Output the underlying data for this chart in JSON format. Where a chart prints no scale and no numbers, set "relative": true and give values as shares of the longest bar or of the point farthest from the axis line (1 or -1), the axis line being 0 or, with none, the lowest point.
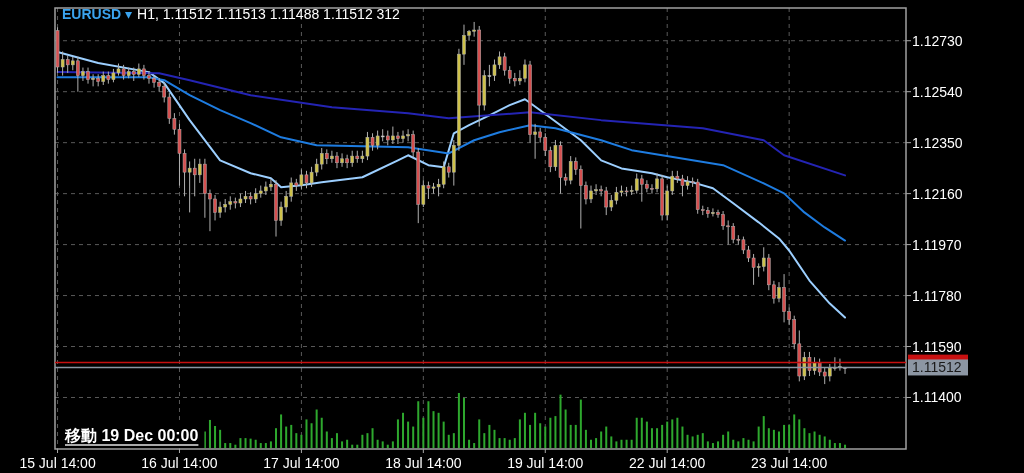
{
  "chart_data": [
    {
      "type": "candlestick",
      "title": "EURUSD ▾",
      "subtitle": "H1, 1.11512 1.11513 1.11488 1.11512 312",
      "categories": [
        "15 Jul 14:00",
        null,
        null,
        null,
        null,
        null,
        null,
        null,
        null,
        null,
        null,
        null,
        null,
        null,
        null,
        null,
        null,
        null,
        null,
        null,
        null,
        null,
        null,
        null,
        "16 Jul 14:00",
        null,
        null,
        null,
        null,
        null,
        null,
        null,
        null,
        null,
        null,
        null,
        null,
        null,
        null,
        null,
        null,
        null,
        null,
        null,
        null,
        null,
        null,
        null,
        "17 Jul 14:00",
        null,
        null,
        null,
        null,
        null,
        null,
        null,
        null,
        null,
        null,
        null,
        null,
        null,
        null,
        null,
        null,
        null,
        null,
        null,
        null,
        null,
        null,
        null,
        "18 Jul 14:00",
        null,
        null,
        null,
        null,
        null,
        null,
        null,
        null,
        null,
        null,
        null,
        null,
        null,
        null,
        null,
        null,
        null,
        null,
        null,
        null,
        null,
        null,
        null,
        "19 Jul 14:00",
        null,
        null,
        null,
        null,
        null,
        null,
        null,
        null,
        null,
        null,
        null,
        null,
        null,
        null,
        null,
        null,
        null,
        null,
        null,
        null,
        null,
        null,
        null,
        "22 Jul 14:00",
        null,
        null,
        null,
        null,
        null,
        null,
        null,
        null,
        null,
        null,
        null,
        null,
        null,
        null,
        null,
        null,
        null,
        null,
        null,
        null,
        null,
        null,
        null,
        "23 Jul 14:00",
        null,
        null,
        null,
        null,
        null,
        null,
        null,
        null,
        null,
        null,
        null
      ],
      "ohlc": [
        [
          1.12768,
          1.1278,
          1.1261,
          1.12632
        ],
        [
          1.12632,
          1.1269,
          1.126,
          1.1266
        ],
        [
          1.1266,
          1.12675,
          1.1261,
          1.1264
        ],
        [
          1.1264,
          1.1267,
          1.1262,
          1.12655
        ],
        [
          1.12655,
          1.1267,
          1.1254,
          1.126
        ],
        [
          1.126,
          1.1263,
          1.1258,
          1.12615
        ],
        [
          1.12615,
          1.1263,
          1.1257,
          1.12585
        ],
        [
          1.12585,
          1.12605,
          1.1256,
          1.1259
        ],
        [
          1.1259,
          1.12605,
          1.1256,
          1.12578
        ],
        [
          1.12578,
          1.12615,
          1.12565,
          1.126
        ],
        [
          1.126,
          1.12615,
          1.1257,
          1.12585
        ],
        [
          1.12585,
          1.12625,
          1.12575,
          1.1261
        ],
        [
          1.1261,
          1.12645,
          1.126,
          1.12625
        ],
        [
          1.12625,
          1.1264,
          1.12585,
          1.126
        ],
        [
          1.126,
          1.1263,
          1.1259,
          1.12615
        ],
        [
          1.12615,
          1.1263,
          1.1258,
          1.12605
        ],
        [
          1.12605,
          1.12645,
          1.12595,
          1.12625
        ],
        [
          1.12625,
          1.1264,
          1.12585,
          1.126
        ],
        [
          1.126,
          1.12615,
          1.1257,
          1.1259
        ],
        [
          1.1259,
          1.126,
          1.12555,
          1.12575
        ],
        [
          1.12575,
          1.1259,
          1.1254,
          1.1256
        ],
        [
          1.1256,
          1.12575,
          1.125,
          1.1252
        ],
        [
          1.1252,
          1.12535,
          1.1242,
          1.1244
        ],
        [
          1.1244,
          1.1246,
          1.1238,
          1.124
        ],
        [
          1.124,
          1.1242,
          1.1219,
          1.1231
        ],
        [
          1.1231,
          1.12325,
          1.1215,
          1.1224
        ],
        [
          1.1224,
          1.1228,
          1.1209,
          1.12255
        ],
        [
          1.12255,
          1.1229,
          1.1215,
          1.1223
        ],
        [
          1.1223,
          1.1229,
          1.122,
          1.1227
        ],
        [
          1.1227,
          1.1229,
          1.1207,
          1.1216
        ],
        [
          1.1216,
          1.12175,
          1.1202,
          1.1214
        ],
        [
          1.1214,
          1.12155,
          1.1206,
          1.1209
        ],
        [
          1.1209,
          1.1213,
          1.1207,
          1.1211
        ],
        [
          1.1211,
          1.1214,
          1.1209,
          1.1212
        ],
        [
          1.1212,
          1.1215,
          1.121,
          1.1213
        ],
        [
          1.1213,
          1.12145,
          1.12105,
          1.12125
        ],
        [
          1.12125,
          1.1216,
          1.1211,
          1.1214
        ],
        [
          1.1214,
          1.1217,
          1.12125,
          1.1215
        ],
        [
          1.1215,
          1.12165,
          1.1212,
          1.1214
        ],
        [
          1.1214,
          1.1218,
          1.12125,
          1.1216
        ],
        [
          1.1216,
          1.1219,
          1.12145,
          1.1217
        ],
        [
          1.1217,
          1.12205,
          1.12155,
          1.12185
        ],
        [
          1.12185,
          1.12215,
          1.1217,
          1.12195
        ],
        [
          1.12195,
          1.1221,
          1.12,
          1.1206
        ],
        [
          1.1206,
          1.1213,
          1.1204,
          1.1211
        ],
        [
          1.1211,
          1.1217,
          1.1209,
          1.1215
        ],
        [
          1.1215,
          1.1222,
          1.1213,
          1.122
        ],
        [
          1.122,
          1.12215,
          1.1217,
          1.1219
        ],
        [
          1.1219,
          1.1225,
          1.12175,
          1.1223
        ],
        [
          1.1223,
          1.12245,
          1.1218,
          1.122
        ],
        [
          1.122,
          1.1226,
          1.12185,
          1.1224
        ],
        [
          1.1224,
          1.1229,
          1.12225,
          1.1227
        ],
        [
          1.1227,
          1.1233,
          1.1225,
          1.1231
        ],
        [
          1.1231,
          1.12325,
          1.1227,
          1.1229
        ],
        [
          1.1229,
          1.1232,
          1.12275,
          1.123
        ],
        [
          1.123,
          1.12315,
          1.12255,
          1.12275
        ],
        [
          1.12275,
          1.1231,
          1.1226,
          1.1229
        ],
        [
          1.1229,
          1.12305,
          1.12255,
          1.12275
        ],
        [
          1.12275,
          1.1232,
          1.1226,
          1.123
        ],
        [
          1.123,
          1.1232,
          1.12275,
          1.1229
        ],
        [
          1.1229,
          1.1232,
          1.12275,
          1.123
        ],
        [
          1.123,
          1.1239,
          1.12285,
          1.1237
        ],
        [
          1.1237,
          1.12385,
          1.1232,
          1.1234
        ],
        [
          1.1234,
          1.12395,
          1.12325,
          1.12375
        ],
        [
          1.12375,
          1.124,
          1.12355,
          1.12375
        ],
        [
          1.12375,
          1.12395,
          1.1234,
          1.1236
        ],
        [
          1.1236,
          1.1241,
          1.12345,
          1.12375
        ],
        [
          1.12375,
          1.1239,
          1.12345,
          1.12365
        ],
        [
          1.12365,
          1.12395,
          1.1235,
          1.12375
        ],
        [
          1.12375,
          1.124,
          1.12355,
          1.1238
        ],
        [
          1.1238,
          1.12395,
          1.12295,
          1.12315
        ],
        [
          1.12315,
          1.1233,
          1.1205,
          1.1212
        ],
        [
          1.1212,
          1.1221,
          1.1211,
          1.1219
        ],
        [
          1.1219,
          1.12205,
          1.1214,
          1.1218
        ],
        [
          1.1218,
          1.122,
          1.1216,
          1.12185
        ],
        [
          1.12185,
          1.12215,
          1.1215,
          1.12195
        ],
        [
          1.12195,
          1.1228,
          1.1218,
          1.1226
        ],
        [
          1.1226,
          1.12275,
          1.1222,
          1.1224
        ],
        [
          1.1224,
          1.1236,
          1.1219,
          1.1234
        ],
        [
          1.1234,
          1.127,
          1.1232,
          1.1268
        ],
        [
          1.1268,
          1.1279,
          1.1264,
          1.1275
        ],
        [
          1.1275,
          1.1277,
          1.1273,
          1.12765
        ],
        [
          1.12765,
          1.128,
          1.12745,
          1.1277
        ],
        [
          1.1277,
          1.12785,
          1.1241,
          1.1249
        ],
        [
          1.1249,
          1.1262,
          1.1247,
          1.126
        ],
        [
          1.126,
          1.1264,
          1.1256,
          1.126
        ],
        [
          1.126,
          1.1266,
          1.1258,
          1.1264
        ],
        [
          1.1264,
          1.1269,
          1.12625,
          1.1267
        ],
        [
          1.1267,
          1.12685,
          1.126,
          1.1262
        ],
        [
          1.1262,
          1.12635,
          1.1257,
          1.1259
        ],
        [
          1.1259,
          1.1261,
          1.1256,
          1.1258
        ],
        [
          1.1258,
          1.1262,
          1.12565,
          1.1259
        ],
        [
          1.1259,
          1.1266,
          1.12575,
          1.1264
        ],
        [
          1.1264,
          1.12655,
          1.1235,
          1.1238
        ],
        [
          1.1238,
          1.1242,
          1.1229,
          1.1239
        ],
        [
          1.1239,
          1.12405,
          1.1235,
          1.1237
        ],
        [
          1.1237,
          1.12385,
          1.123,
          1.1232
        ],
        [
          1.1232,
          1.12335,
          1.1224,
          1.1226
        ],
        [
          1.1226,
          1.1236,
          1.12245,
          1.1234
        ],
        [
          1.1234,
          1.12355,
          1.1216,
          1.1222
        ],
        [
          1.1222,
          1.12235,
          1.1219,
          1.1221
        ],
        [
          1.1221,
          1.123,
          1.12195,
          1.1228
        ],
        [
          1.1228,
          1.12295,
          1.1223,
          1.1225
        ],
        [
          1.1225,
          1.12265,
          1.1203,
          1.1219
        ],
        [
          1.1219,
          1.12205,
          1.1212,
          1.1214
        ],
        [
          1.1214,
          1.1219,
          1.12125,
          1.1217
        ],
        [
          1.1217,
          1.12195,
          1.12155,
          1.12175
        ],
        [
          1.12175,
          1.1219,
          1.1215,
          1.1217
        ],
        [
          1.1217,
          1.12185,
          1.1208,
          1.1211
        ],
        [
          1.1211,
          1.12155,
          1.12095,
          1.12135
        ],
        [
          1.12135,
          1.12185,
          1.1212,
          1.12165
        ],
        [
          1.12165,
          1.1219,
          1.1215,
          1.1217
        ],
        [
          1.1217,
          1.12185,
          1.1215,
          1.12168
        ],
        [
          1.12168,
          1.1219,
          1.12155,
          1.12172
        ],
        [
          1.12172,
          1.12235,
          1.1216,
          1.12215
        ],
        [
          1.12215,
          1.1223,
          1.1213,
          1.12195
        ],
        [
          1.12195,
          1.1221,
          1.12165,
          1.1218
        ],
        [
          1.1218,
          1.12195,
          1.1216,
          1.12178
        ],
        [
          1.12178,
          1.12235,
          1.12165,
          1.12215
        ],
        [
          1.12215,
          1.1223,
          1.1206,
          1.1208
        ],
        [
          1.1208,
          1.1219,
          1.1206,
          1.1217
        ],
        [
          1.1217,
          1.12245,
          1.12155,
          1.12225
        ],
        [
          1.12225,
          1.12245,
          1.122,
          1.12215
        ],
        [
          1.12215,
          1.1223,
          1.1215,
          1.1219
        ],
        [
          1.1219,
          1.12225,
          1.12175,
          1.12205
        ],
        [
          1.12205,
          1.1222,
          1.12185,
          1.12203
        ],
        [
          1.12203,
          1.12215,
          1.12085,
          1.121
        ],
        [
          1.121,
          1.12115,
          1.1208,
          1.12098
        ],
        [
          1.12098,
          1.1211,
          1.1207,
          1.12085
        ],
        [
          1.12085,
          1.12105,
          1.12075,
          1.1209
        ],
        [
          1.1209,
          1.121,
          1.1207,
          1.12082
        ],
        [
          1.12082,
          1.12095,
          1.12025,
          1.1204
        ],
        [
          1.1204,
          1.1206,
          1.1197,
          1.12038
        ],
        [
          1.12038,
          1.1205,
          1.11975,
          1.1199
        ],
        [
          1.1199,
          1.12005,
          1.1197,
          1.11988
        ],
        [
          1.11988,
          1.12,
          1.11935,
          1.1195
        ],
        [
          1.1195,
          1.11965,
          1.11905,
          1.1192
        ],
        [
          1.1192,
          1.11935,
          1.1182,
          1.11885
        ],
        [
          1.11885,
          1.119,
          1.1185,
          1.11888
        ],
        [
          1.11888,
          1.1196,
          1.1187,
          1.1192
        ],
        [
          1.1192,
          1.11935,
          1.118,
          1.1182
        ],
        [
          1.1182,
          1.11835,
          1.1175,
          1.1177
        ],
        [
          1.1177,
          1.1183,
          1.11755,
          1.1181
        ],
        [
          1.1181,
          1.1186,
          1.1168,
          1.1172
        ],
        [
          1.1172,
          1.11735,
          1.1167,
          1.1169
        ],
        [
          1.1169,
          1.11705,
          1.1158,
          1.116
        ],
        [
          1.116,
          1.1165,
          1.1146,
          1.1148
        ],
        [
          1.1148,
          1.1157,
          1.11465,
          1.1155
        ],
        [
          1.1155,
          1.1157,
          1.1148,
          1.115
        ],
        [
          1.115,
          1.1155,
          1.11485,
          1.1153
        ],
        [
          1.1153,
          1.11545,
          1.1148,
          1.11495
        ],
        [
          1.11495,
          1.1151,
          1.1145,
          1.1148
        ],
        [
          1.1148,
          1.11525,
          1.1146,
          1.1151
        ],
        [
          1.1151,
          1.1155,
          1.115,
          1.11512
        ],
        [
          1.11512,
          1.11545,
          1.115,
          1.11515
        ],
        [
          1.11512,
          1.11513,
          1.11488,
          1.11512
        ]
      ],
      "colors": [
        "#d65050",
        "#cfc24a",
        "#d65050",
        "#cfc24a",
        "#d65050",
        "#cfc24a",
        "#d65050",
        "#cfc24a",
        "#d65050",
        "#cfc24a",
        "#d65050",
        "#cfc24a",
        "#cfc24a",
        "#d65050",
        "#cfc24a",
        "#d65050",
        "#cfc24a",
        "#d65050",
        "#d65050",
        "#d65050",
        "#d65050",
        "#d65050",
        "#d65050",
        "#d65050",
        "#d65050",
        "#d65050",
        "#cfc24a",
        "#d65050",
        "#cfc24a",
        "#d65050",
        "#d65050",
        "#d65050",
        "#cfc24a",
        "#cfc24a",
        "#cfc24a",
        "#d65050",
        "#cfc24a",
        "#cfc24a",
        "#d65050",
        "#cfc24a",
        "#cfc24a",
        "#cfc24a",
        "#cfc24a",
        "#d65050",
        "#cfc24a",
        "#cfc24a",
        "#cfc24a",
        "#d65050",
        "#cfc24a",
        "#d65050",
        "#cfc24a",
        "#cfc24a",
        "#cfc24a",
        "#d65050",
        "#cfc24a",
        "#d65050",
        "#cfc24a",
        "#d65050",
        "#cfc24a",
        "#d65050",
        "#cfc24a",
        "#cfc24a",
        "#d65050",
        "#cfc24a",
        "#e8e8e8",
        "#d65050",
        "#cfc24a",
        "#d65050",
        "#cfc24a",
        "#cfc24a",
        "#d65050",
        "#d65050",
        "#cfc24a",
        "#d65050",
        "#cfc24a",
        "#cfc24a",
        "#cfc24a",
        "#d65050",
        "#cfc24a",
        "#cfc24a",
        "#cfc24a",
        "#cfc24a",
        "#cfc24a",
        "#d65050",
        "#cfc24a",
        "#e8e8e8",
        "#cfc24a",
        "#cfc24a",
        "#d65050",
        "#d65050",
        "#d65050",
        "#cfc24a",
        "#cfc24a",
        "#d65050",
        "#cfc24a",
        "#d65050",
        "#d65050",
        "#d65050",
        "#cfc24a",
        "#d65050",
        "#d65050",
        "#cfc24a",
        "#d65050",
        "#d65050",
        "#d65050",
        "#cfc24a",
        "#cfc24a",
        "#d65050",
        "#d65050",
        "#cfc24a",
        "#cfc24a",
        "#cfc24a",
        "#d65050",
        "#cfc24a",
        "#cfc24a",
        "#d65050",
        "#d65050",
        "#d65050",
        "#cfc24a",
        "#d65050",
        "#cfc24a",
        "#cfc24a",
        "#d65050",
        "#d65050",
        "#cfc24a",
        "#d65050",
        "#d65050",
        "#d65050",
        "#d65050",
        "#cfc24a",
        "#d65050",
        "#d65050",
        "#d65050",
        "#d65050",
        "#d65050",
        "#d65050",
        "#d65050",
        "#d65050",
        "#cfc24a",
        "#cfc24a",
        "#d65050",
        "#d65050",
        "#cfc24a",
        "#d65050",
        "#d65050",
        "#d65050",
        "#d65050",
        "#cfc24a",
        "#d65050",
        "#cfc24a",
        "#d65050",
        "#d65050",
        "#cfc24a",
        "#cfc24a",
        "#cfc24a",
        "#e8e8e8"
      ],
      "series": [
        {
          "type": "line",
          "color": "#9ccfff",
          "values": [
            1.12688,
            null,
            null,
            null,
            null,
            null,
            null,
            null,
            1.12647,
            null,
            null,
            null,
            null,
            null,
            null,
            null,
            null,
            null,
            1.12613,
            null,
            null,
            1.12572,
            null,
            null,
            null,
            null,
            1.12434,
            null,
            null,
            null,
            null,
            null,
            1.12284,
            null,
            null,
            null,
            null,
            null,
            1.12236,
            null,
            null,
            null,
            1.12217,
            null,
            1.12184,
            null,
            null,
            null,
            1.12191,
            null,
            null,
            null,
            1.12202,
            null,
            null,
            null,
            null,
            null,
            null,
            null,
            1.12221,
            null,
            null,
            null,
            null,
            null,
            null,
            1.12284,
            null,
            1.12303,
            null,
            null,
            null,
            1.12266,
            null,
            null,
            1.12258,
            null,
            1.12385,
            null,
            null,
            1.12415,
            null,
            null,
            null,
            1.12452,
            null,
            null,
            null,
            1.1249,
            null,
            null,
            1.12512,
            null,
            null,
            1.12471,
            null,
            null,
            null,
            1.12415,
            null,
            null,
            null,
            1.12359,
            null,
            null,
            null,
            1.12284,
            null,
            null,
            null,
            1.12254,
            null,
            null,
            null,
            null,
            null,
            1.12236,
            null,
            null,
            1.12221,
            null,
            null,
            null,
            null,
            1.12202,
            null,
            null,
            null,
            1.1218,
            null,
            null,
            null,
            1.12124,
            null,
            null,
            null,
            null,
            1.12053,
            null,
            null,
            null,
            1.11993,
            null,
            1.11948,
            null,
            null,
            null,
            1.11836,
            null,
            null,
            null,
            1.1175,
            null,
            null,
            1.11698
          ]
        },
        {
          "type": "line",
          "color": "#1e7ce0",
          "values": [
            1.12594,
            null,
            null,
            null,
            null,
            null,
            null,
            null,
            null,
            null,
            null,
            null,
            null,
            null,
            null,
            null,
            null,
            null,
            1.12594,
            null,
            null,
            1.12583,
            null,
            null,
            null,
            null,
            1.12527,
            null,
            null,
            null,
            null,
            null,
            1.12471,
            null,
            null,
            null,
            null,
            null,
            1.12423,
            null,
            null,
            null,
            null,
            null,
            1.1237,
            null,
            null,
            null,
            null,
            null,
            null,
            1.1234,
            null,
            null,
            null,
            null,
            null,
            null,
            null,
            null,
            null,
            null,
            null,
            null,
            null,
            null,
            null,
            null,
            null,
            1.12333,
            null,
            null,
            null,
            null,
            null,
            null,
            null,
            1.1231,
            null,
            null,
            null,
            null,
            1.12359,
            null,
            null,
            null,
            null,
            1.12389,
            null,
            null,
            null,
            null,
            null,
            1.12415,
            null,
            null,
            null,
            null,
            1.12404,
            null,
            null,
            null,
            null,
            null,
            null,
            null,
            null,
            1.12359,
            null,
            null,
            null,
            null,
            null,
            1.12322,
            null,
            null,
            null,
            null,
            null,
            null,
            null,
            null,
            null,
            null,
            null,
            null,
            null,
            null,
            null,
            null,
            null,
            1.12266,
            null,
            null,
            null,
            null,
            null,
            null,
            null,
            1.12198,
            null,
            null,
            null,
            1.12161,
            null,
            null,
            null,
            1.1209,
            null,
            null,
            null,
            1.12034,
            null,
            null,
            null,
            1.11985
          ]
        },
        {
          "type": "line",
          "color": "#2424b4",
          "values": [
            1.12613,
            null,
            null,
            null,
            null,
            null,
            null,
            null,
            null,
            null,
            null,
            null,
            null,
            null,
            null,
            null,
            null,
            null,
            null,
            null,
            1.12609,
            null,
            null,
            null,
            null,
            null,
            1.12583,
            null,
            null,
            null,
            null,
            null,
            null,
            null,
            null,
            null,
            null,
            null,
            1.12527,
            null,
            null,
            null,
            null,
            null,
            null,
            null,
            null,
            null,
            null,
            null,
            null,
            null,
            null,
            null,
            1.12482,
            null,
            null,
            null,
            null,
            null,
            null,
            null,
            null,
            null,
            null,
            null,
            null,
            null,
            null,
            1.1246,
            null,
            null,
            null,
            null,
            null,
            null,
            null,
            1.12441,
            null,
            null,
            null,
            null,
            null,
            null,
            null,
            1.12452,
            null,
            null,
            null,
            null,
            null,
            null,
            null,
            1.12463,
            null,
            null,
            null,
            null,
            null,
            null,
            null,
            null,
            null,
            null,
            null,
            null,
            null,
            1.12434,
            null,
            null,
            null,
            null,
            null,
            null,
            null,
            null,
            null,
            null,
            null,
            null,
            null,
            null,
            null,
            null,
            null,
            null,
            null,
            1.12404,
            null,
            null,
            null,
            null,
            null,
            null,
            null,
            null,
            null,
            null,
            null,
            1.12359,
            null,
            null,
            null,
            1.12303,
            null,
            null,
            null,
            null,
            null,
            null,
            null,
            null,
            null,
            null,
            null,
            1.12228
          ]
        }
      ],
      "ylim": [
        1.11208,
        1.12852
      ],
      "yticks": [
        {
          "value": 1.1273,
          "label": "1.12730"
        },
        {
          "value": 1.1254,
          "label": "1.12540"
        },
        {
          "value": 1.1235,
          "label": "1.12350"
        },
        {
          "value": 1.1216,
          "label": "1.12160"
        },
        {
          "value": 1.1197,
          "label": "1.11970"
        },
        {
          "value": 1.1178,
          "label": "1.11780"
        },
        {
          "value": 1.1159,
          "label": "1.11590"
        },
        {
          "value": 1.114,
          "label": "1.11400"
        }
      ],
      "ref_lines": [
        {
          "axis": "y",
          "value": 1.1153,
          "label": null,
          "color": "#c81010"
        },
        {
          "axis": "y",
          "value": 1.11512,
          "label": "1.11512",
          "color": "#8c96a3"
        }
      ],
      "annotations": [
        "移動 19 Dec 00:00"
      ],
      "grid": true
    },
    {
      "type": "bar",
      "relative": true,
      "color": "#2ea82e",
      "categories": [
        null,
        null,
        null,
        null,
        null,
        null,
        null,
        null,
        null,
        null,
        null,
        null,
        null,
        null,
        null,
        null,
        null,
        null,
        null,
        null,
        null,
        null,
        null,
        null,
        null,
        null,
        null,
        null,
        null,
        null,
        null,
        null,
        null,
        null,
        null,
        null,
        null,
        null,
        null,
        null,
        null,
        null,
        null,
        null,
        null,
        null,
        null,
        null,
        null,
        null,
        null,
        null,
        null,
        null,
        null,
        null,
        null,
        null,
        null,
        null,
        null,
        null,
        null,
        null,
        null,
        null,
        null,
        null,
        null,
        null,
        null,
        null,
        null,
        null,
        null,
        null,
        null,
        null,
        null,
        null,
        null,
        null,
        null,
        null,
        null,
        null,
        null,
        null,
        null,
        null,
        null,
        null,
        null,
        null,
        null,
        null,
        null,
        null,
        null,
        null,
        null,
        null,
        null,
        null,
        null,
        null,
        null,
        null,
        null,
        null,
        null,
        null,
        null,
        null,
        null,
        null,
        null,
        null,
        null,
        null,
        null,
        null,
        null,
        null,
        null,
        null,
        null,
        null,
        null,
        null,
        null,
        null,
        null,
        null,
        null,
        null,
        null,
        null,
        null,
        null,
        null,
        null,
        null,
        null,
        null,
        null,
        null,
        null,
        null,
        null,
        null,
        null,
        null,
        null,
        null,
        null
      ],
      "values": [
        null,
        null,
        null,
        null,
        null,
        null,
        null,
        null,
        null,
        null,
        null,
        null,
        null,
        null,
        null,
        null,
        null,
        null,
        null,
        null,
        null,
        null,
        null,
        null,
        null,
        null,
        null,
        null,
        null,
        0.3,
        0.51,
        0.4,
        0.33,
        0.09,
        0.09,
        0.06,
        0.18,
        0.18,
        0.17,
        0.15,
        0.09,
        0.09,
        0.12,
        0.36,
        0.61,
        0.39,
        0.42,
        0.27,
        0.24,
        0.52,
        0.45,
        0.7,
        0.55,
        0.3,
        0.18,
        0.27,
        0.12,
        0.15,
        0.06,
        0.06,
        0.24,
        0.27,
        0.36,
        0.15,
        0.12,
        0.06,
        0.12,
        0.52,
        0.64,
        0.48,
        0.39,
        0.85,
        0.55,
        0.85,
        0.67,
        0.64,
        0.48,
        0.24,
        0.27,
        1,
        0.91,
        0.15,
        0.09,
        0.52,
        0.27,
        0.42,
        0.33,
        0.18,
        0.18,
        0.15,
        0.18,
        0.52,
        0.64,
        0.42,
        0.64,
        0.45,
        0.39,
        0.55,
        0.58,
        0.97,
        0.7,
        0.42,
        0.42,
        0.88,
        0.33,
        0.15,
        0.18,
        0.3,
        0.39,
        0.21,
        0.12,
        0.15,
        0.15,
        0.15,
        0.55,
        0.55,
        0.48,
        0.36,
        0.36,
        0.42,
        0.48,
        0.52,
        0.55,
        0.39,
        0.24,
        0.21,
        0.24,
        0.27,
        0.12,
        0.09,
        0.12,
        0.24,
        0.3,
        0.15,
        0.12,
        0.18,
        0.15,
        0.12,
        0.39,
        0.58,
        0.36,
        0.33,
        0.3,
        0.42,
        0.42,
        0.61,
        0.52,
        0.36,
        0.27,
        0.3,
        0.24,
        0.21,
        0.15,
        0.09,
        0.09,
        0.06
      ]
    }
  ]
}
